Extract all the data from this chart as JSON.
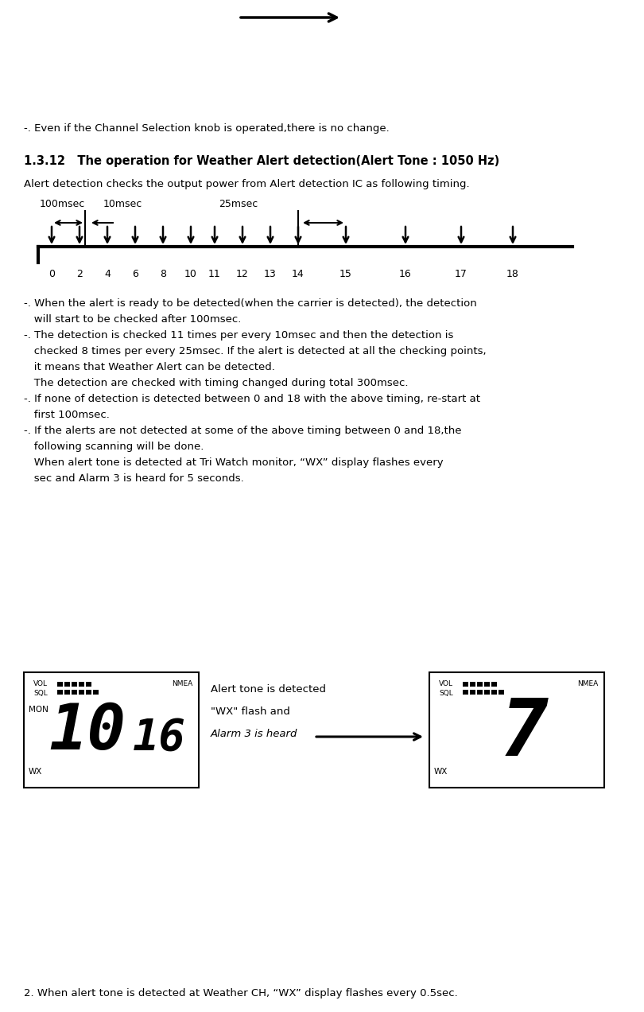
{
  "bg_color": "#ffffff",
  "line1": "-. Even if the Channel Selection knob is operated,there is no change.",
  "section_title": "1.3.12   The operation for Weather Alert detection(Alert Tone : 1050 Hz)",
  "line2": "Alert detection checks the output power from Alert detection IC as following timing.",
  "bullet_lines": [
    "-. When the alert is ready to be detected(when the carrier is detected), the detection",
    "   will start to be checked after 100msec.",
    "-. The detection is checked 11 times per every 10msec and then the detection is",
    "   checked 8 times per every 25msec. If the alert is detected at all the checking points,",
    "   it means that Weather Alert can be detected.",
    "   The detection are checked with timing changed during total 300msec.",
    "-. If none of detection is detected between 0 and 18 with the above timing, re-start at",
    "   first 100msec.",
    "-. If the alerts are not detected at some of the above timing between 0 and 18,the",
    "   following scanning will be done.",
    "   When alert tone is detected at Tri Watch monitor, “WX” display flashes every",
    "   sec and Alarm 3 is heard for 5 seconds."
  ],
  "annotation_lines": [
    "Alert tone is detected",
    "\"WX\" flash and",
    "Alarm 3 is heard"
  ],
  "bottom_line": "2. When alert tone is detected at Weather CH, “WX” display flashes every 0.5sec.",
  "tick_xs": [
    65,
    100,
    135,
    170,
    205,
    240,
    270,
    305,
    340,
    375,
    435,
    510,
    580,
    645
  ],
  "tick_labels": [
    "0",
    "2",
    "4",
    "6",
    "8",
    "10",
    "11",
    "12",
    "13",
    "14",
    "15",
    "16",
    "17",
    "18"
  ]
}
